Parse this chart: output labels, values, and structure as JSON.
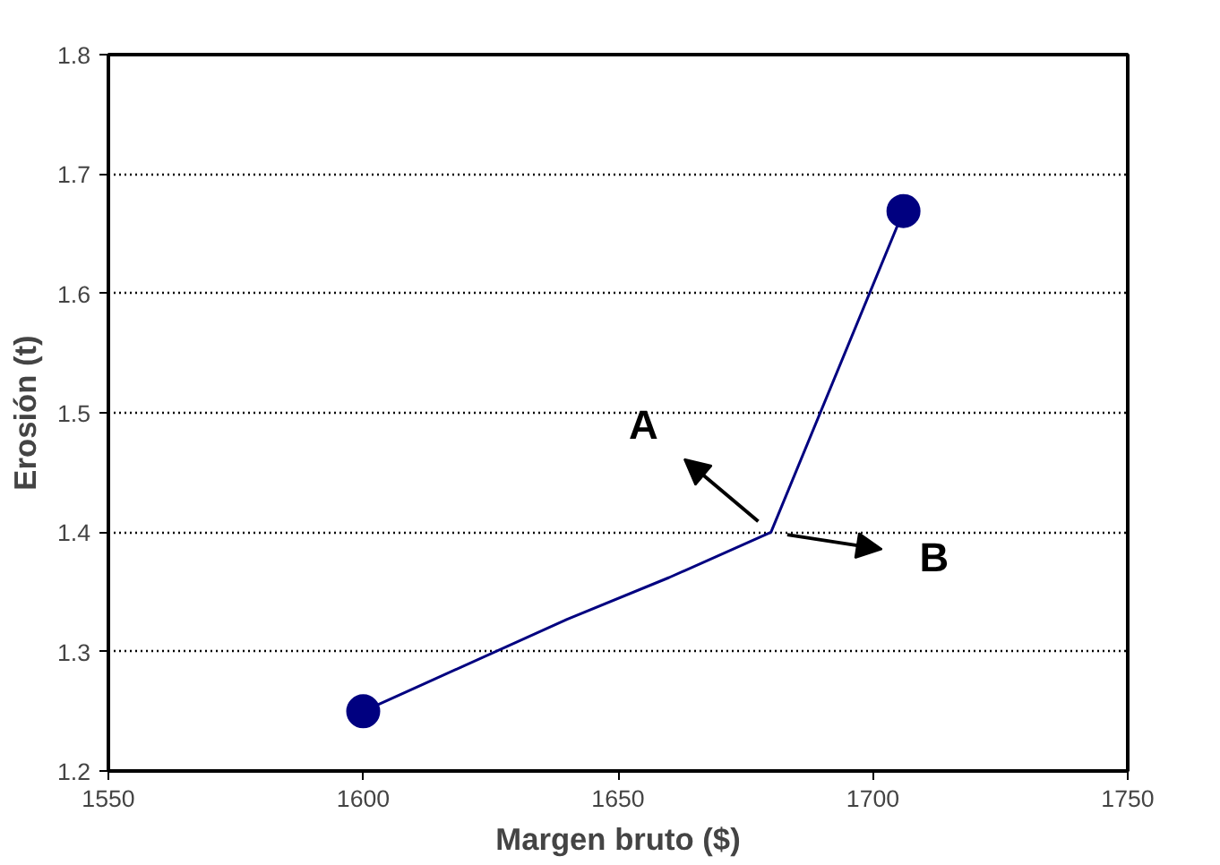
{
  "chart_data": {
    "type": "line",
    "xlabel": "Margen bruto ($)",
    "ylabel": "Erosión (t)",
    "x": [
      1600,
      1640,
      1660,
      1680,
      1706
    ],
    "series": [
      {
        "color": "#000080",
        "values": [
          1.25,
          1.327,
          1.362,
          1.4,
          1.669
        ]
      },
      {
        "type": "scatter",
        "color": "#000080",
        "x": [
          1600,
          1706
        ],
        "values": [
          1.25,
          1.669
        ],
        "marker": "circle"
      }
    ],
    "xlim": [
      1550,
      1750
    ],
    "xticks": [
      1550,
      1600,
      1650,
      1700,
      1750
    ],
    "ylim": [
      1.2,
      1.8
    ],
    "yticks": [
      {
        "value": 1.2,
        "label": "1.2"
      },
      {
        "value": 1.3,
        "label": "1.3"
      },
      {
        "value": 1.4,
        "label": "1.4"
      },
      {
        "value": 1.5,
        "label": "1.5"
      },
      {
        "value": 1.6,
        "label": "1.6"
      },
      {
        "value": 1.7,
        "label": "1.7"
      },
      {
        "value": 1.8,
        "label": "1.8"
      }
    ],
    "grid": "y",
    "marker": "none",
    "line_style": "solid",
    "annotations": [
      "A",
      "B"
    ]
  }
}
